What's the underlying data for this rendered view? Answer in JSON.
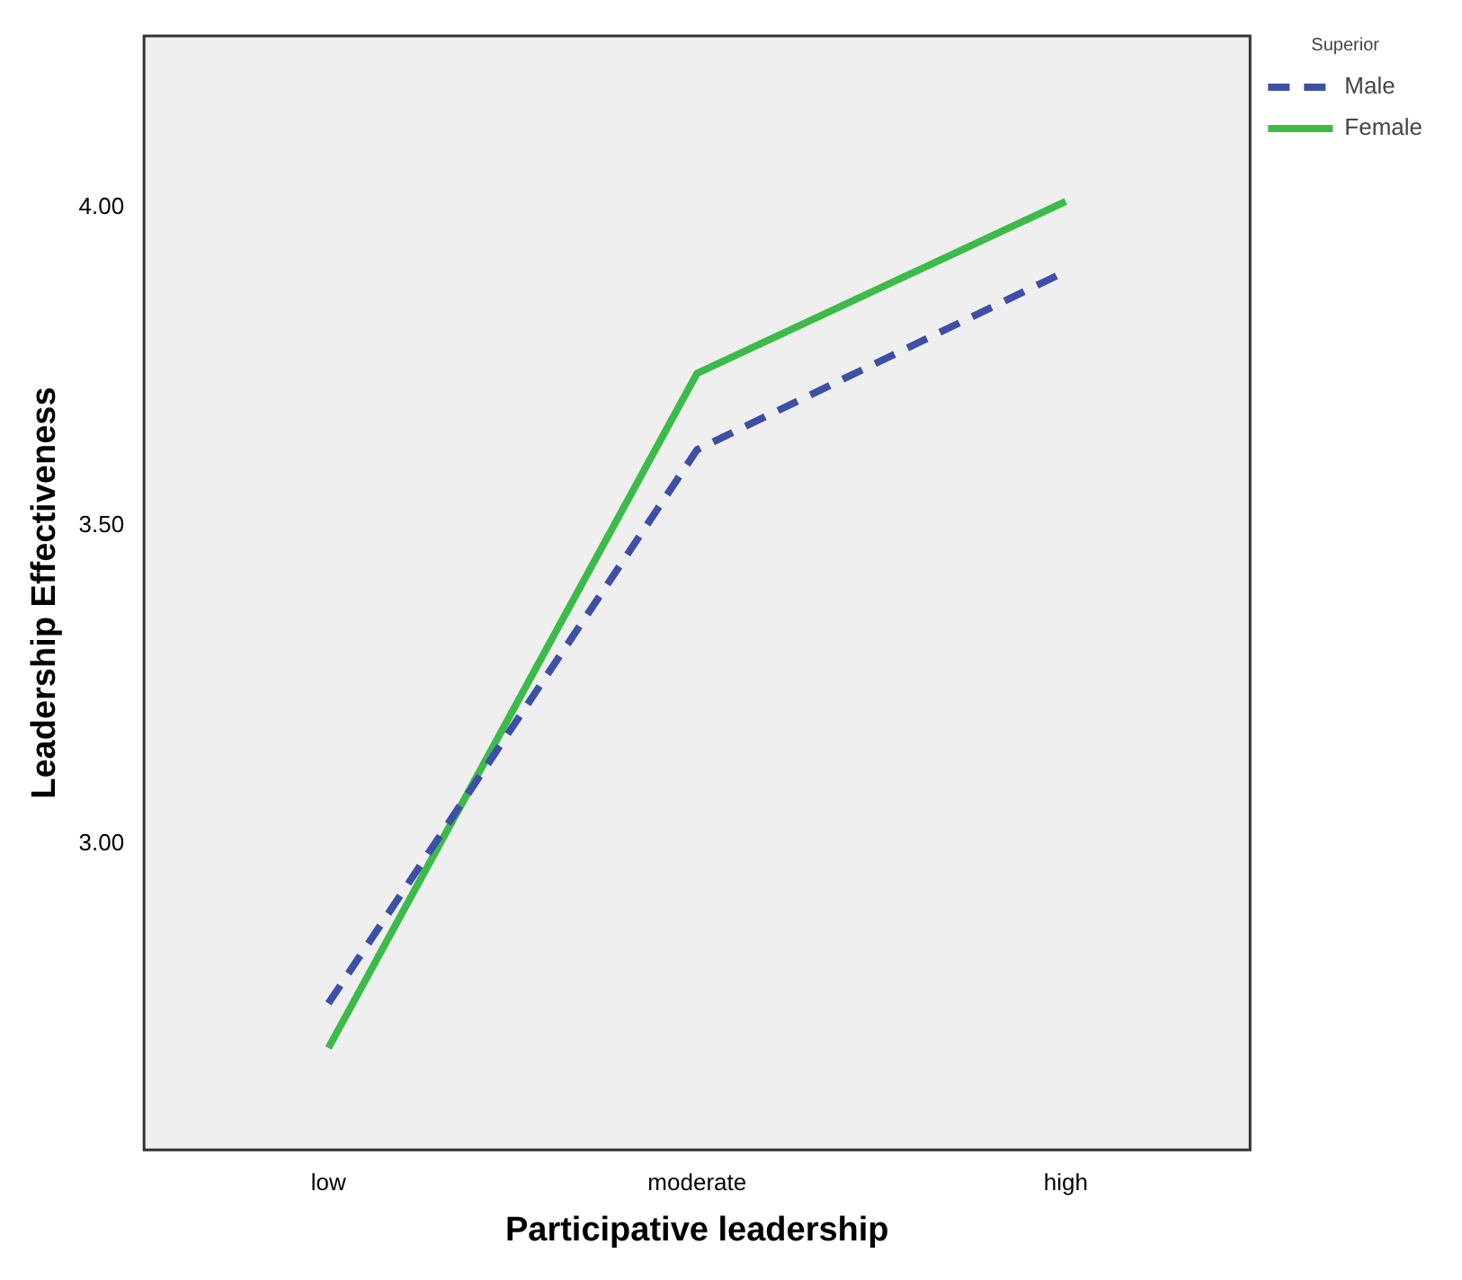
{
  "chart_data": {
    "type": "line",
    "xlabel": "Participative leadership",
    "ylabel": "Leadership Effectiveness",
    "legend_title": "Superior",
    "categories": [
      "low",
      "moderate",
      "high"
    ],
    "series": [
      {
        "name": "Male",
        "color": "#3d4fa6",
        "line_style": "dashed",
        "values": [
          2.75,
          3.62,
          3.9
        ]
      },
      {
        "name": "Female",
        "color": "#3cbb4a",
        "line_style": "solid",
        "values": [
          2.68,
          3.74,
          4.01
        ]
      }
    ],
    "ylim": [
      2.52,
      4.27
    ],
    "yticks": [
      {
        "value": 3,
        "label": "3.00"
      },
      {
        "value": 3.5,
        "label": "3.50"
      },
      {
        "value": 4,
        "label": "4.00"
      }
    ],
    "grid": false,
    "legend": "top right",
    "marker": "none"
  }
}
